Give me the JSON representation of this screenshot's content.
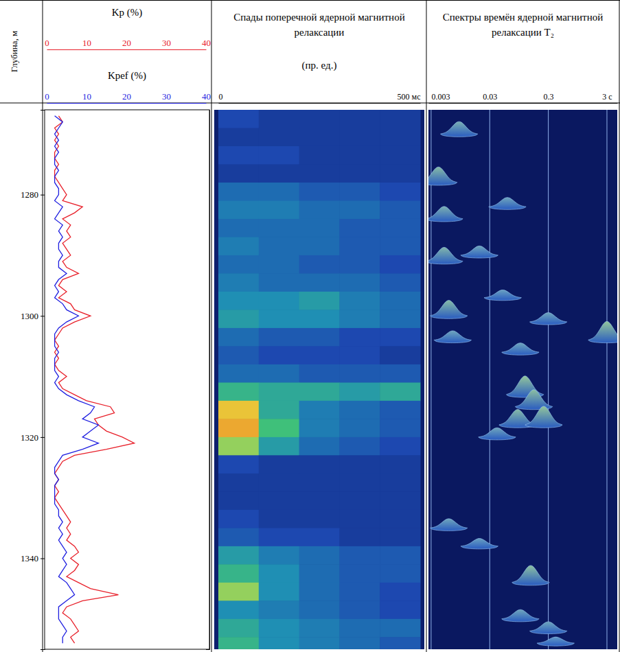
{
  "chart_data": {
    "type": "well_log",
    "y_label": "Глубина, м",
    "ylim": [
      1266,
      1355
    ],
    "yticks": [
      1280,
      1300,
      1320,
      1340
    ],
    "tracks": [
      {
        "type": "line",
        "depths": [
          1267,
          1268,
          1269,
          1270,
          1271,
          1272,
          1273,
          1274,
          1275,
          1276,
          1277,
          1278,
          1279,
          1280,
          1281,
          1282,
          1283,
          1284,
          1285,
          1286,
          1287,
          1288,
          1289,
          1290,
          1291,
          1292,
          1293,
          1294,
          1295,
          1296,
          1297,
          1298,
          1299,
          1300,
          1301,
          1302,
          1303,
          1304,
          1305,
          1306,
          1307,
          1308,
          1309,
          1310,
          1311,
          1312,
          1313,
          1314,
          1315,
          1316,
          1317,
          1318,
          1319,
          1320,
          1321,
          1322,
          1323,
          1324,
          1325,
          1326,
          1327,
          1328,
          1329,
          1330,
          1331,
          1332,
          1333,
          1334,
          1335,
          1336,
          1337,
          1338,
          1339,
          1340,
          1341,
          1342,
          1343,
          1344,
          1345,
          1346,
          1347,
          1348,
          1349,
          1350,
          1351,
          1352,
          1353,
          1354
        ],
        "series": [
          {
            "name": "Kp (%)",
            "color": "#e8202a",
            "xlim": [
              0,
              40
            ],
            "xticks": [
              0,
              10,
              20,
              30,
              40
            ],
            "values": [
              3,
              4,
              2,
              3,
              2,
              3,
              2,
              2,
              3,
              2,
              2,
              3,
              4,
              5,
              4,
              9,
              7,
              4,
              6,
              5,
              6,
              4,
              5,
              6,
              4,
              5,
              8,
              4,
              3,
              5,
              3,
              6,
              7,
              11,
              7,
              4,
              3,
              2,
              3,
              2,
              3,
              2,
              3,
              5,
              3,
              4,
              7,
              10,
              16,
              17,
              12,
              13,
              15,
              19,
              22,
              15,
              7,
              4,
              3,
              2,
              3,
              2,
              3,
              2,
              3,
              4,
              5,
              6,
              5,
              6,
              5,
              7,
              8,
              6,
              8,
              7,
              5,
              8,
              11,
              18,
              9,
              5,
              4,
              6,
              7,
              8,
              6,
              7
            ]
          },
          {
            "name": "Kpef (%)",
            "color": "#1f1fe0",
            "xlim": [
              0,
              40
            ],
            "xticks": [
              0,
              10,
              20,
              30,
              40
            ],
            "values": [
              2,
              4,
              3,
              2,
              3,
              2,
              3,
              2,
              2,
              3,
              2,
              2,
              3,
              3,
              2,
              4,
              3,
              2,
              4,
              3,
              4,
              3,
              3,
              4,
              3,
              3,
              5,
              3,
              2,
              3,
              2,
              4,
              5,
              8,
              5,
              3,
              2,
              2,
              2,
              3,
              2,
              2,
              2,
              3,
              2,
              3,
              5,
              8,
              12,
              11,
              9,
              13,
              11,
              9,
              13,
              9,
              4,
              3,
              2,
              2,
              3,
              2,
              2,
              2,
              2,
              3,
              3,
              4,
              3,
              4,
              3,
              4,
              5,
              4,
              5,
              4,
              3,
              5,
              6,
              7,
              5,
              3,
              3,
              3,
              4,
              5,
              4,
              4
            ]
          }
        ]
      },
      {
        "type": "heatmap",
        "title": "Спады поперечной ядерной магнитной релаксации",
        "subtitle": "(пр. ед.)",
        "xlim": [
          0,
          500
        ],
        "xticks": [
          0,
          {
            "value": 500,
            "label": "500 мс"
          }
        ],
        "time_bins": [
          0,
          100,
          200,
          300,
          400,
          500
        ],
        "depth_bins": [
          1266,
          1269,
          1272,
          1275,
          1278,
          1281,
          1284,
          1287,
          1290,
          1293,
          1296,
          1299,
          1302,
          1305,
          1308,
          1311,
          1314,
          1317,
          1320,
          1323,
          1326,
          1329,
          1332,
          1335,
          1338,
          1341,
          1344,
          1347,
          1350,
          1353,
          1356
        ],
        "zlim": [
          0,
          1
        ],
        "cells": [
          [
            0.2,
            0.15,
            0.15,
            0.15,
            0.15
          ],
          [
            0.15,
            0.15,
            0.15,
            0.15,
            0.15
          ],
          [
            0.2,
            0.2,
            0.15,
            0.15,
            0.15
          ],
          [
            0.15,
            0.15,
            0.15,
            0.15,
            0.15
          ],
          [
            0.3,
            0.3,
            0.25,
            0.25,
            0.2
          ],
          [
            0.35,
            0.35,
            0.3,
            0.3,
            0.25
          ],
          [
            0.3,
            0.3,
            0.3,
            0.25,
            0.25
          ],
          [
            0.35,
            0.3,
            0.3,
            0.25,
            0.25
          ],
          [
            0.3,
            0.3,
            0.25,
            0.25,
            0.2
          ],
          [
            0.35,
            0.3,
            0.3,
            0.3,
            0.25
          ],
          [
            0.4,
            0.4,
            0.45,
            0.35,
            0.3
          ],
          [
            0.45,
            0.4,
            0.4,
            0.35,
            0.3
          ],
          [
            0.3,
            0.25,
            0.25,
            0.2,
            0.2
          ],
          [
            0.25,
            0.2,
            0.2,
            0.2,
            0.15
          ],
          [
            0.3,
            0.3,
            0.25,
            0.25,
            0.25
          ],
          [
            0.55,
            0.5,
            0.5,
            0.45,
            0.5
          ],
          [
            0.85,
            0.5,
            0.35,
            0.3,
            0.25
          ],
          [
            0.9,
            0.6,
            0.35,
            0.3,
            0.25
          ],
          [
            0.7,
            0.45,
            0.3,
            0.25,
            0.2
          ],
          [
            0.2,
            0.15,
            0.15,
            0.15,
            0.15
          ],
          [
            0.15,
            0.15,
            0.15,
            0.15,
            0.15
          ],
          [
            0.15,
            0.15,
            0.15,
            0.15,
            0.15
          ],
          [
            0.2,
            0.15,
            0.15,
            0.15,
            0.15
          ],
          [
            0.25,
            0.2,
            0.2,
            0.15,
            0.15
          ],
          [
            0.45,
            0.35,
            0.3,
            0.25,
            0.25
          ],
          [
            0.55,
            0.4,
            0.3,
            0.25,
            0.25
          ],
          [
            0.7,
            0.4,
            0.3,
            0.25,
            0.2
          ],
          [
            0.4,
            0.35,
            0.3,
            0.25,
            0.2
          ],
          [
            0.5,
            0.4,
            0.35,
            0.3,
            0.3
          ],
          [
            0.55,
            0.4,
            0.35,
            0.3,
            0.25
          ]
        ]
      },
      {
        "type": "spectra",
        "title": "Спектры времён ядерной магнитной релаксации T₂",
        "log": "x",
        "grid": true,
        "xlim": [
          0.0027,
          4.5
        ],
        "xticks": [
          0.003,
          0.03,
          0.3,
          {
            "value": 3,
            "label": "3 с"
          }
        ],
        "zlim": [
          0,
          1
        ],
        "depths": [
          1270,
          1278,
          1282,
          1284,
          1290,
          1291,
          1297,
          1300,
          1301,
          1304,
          1304,
          1306,
          1313,
          1315,
          1318,
          1318,
          1320,
          1335,
          1338,
          1344,
          1350,
          1352,
          1354
        ],
        "t2": [
          0.009,
          0.004,
          0.06,
          0.005,
          0.02,
          0.005,
          0.05,
          0.006,
          0.3,
          0.007,
          3,
          0.1,
          0.12,
          0.17,
          0.09,
          0.25,
          0.04,
          0.006,
          0.02,
          0.15,
          0.1,
          0.3,
          0.4
        ],
        "amplitudes": [
          0.4,
          0.5,
          0.3,
          0.4,
          0.3,
          0.45,
          0.25,
          0.5,
          0.3,
          0.3,
          0.6,
          0.3,
          0.6,
          0.55,
          0.5,
          0.6,
          0.3,
          0.3,
          0.25,
          0.55,
          0.3,
          0.3,
          0.2
        ]
      }
    ]
  }
}
